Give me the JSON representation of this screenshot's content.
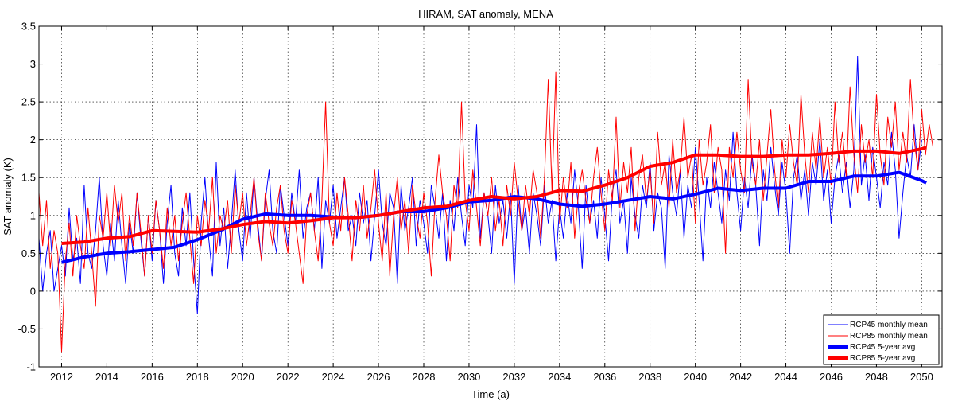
{
  "chart_data": {
    "type": "line",
    "title": "HIRAM, SAT anomaly, MENA",
    "xlabel": "Time (a)",
    "ylabel": "SAT anomaly (K)",
    "xlim": [
      2011.0,
      2050.9
    ],
    "ylim": [
      -1,
      3.5
    ],
    "grid": true,
    "legend_position": "bottom-right",
    "xticks": [
      2012,
      2014,
      2016,
      2018,
      2020,
      2022,
      2024,
      2026,
      2028,
      2030,
      2032,
      2034,
      2036,
      2038,
      2040,
      2042,
      2044,
      2046,
      2048,
      2050
    ],
    "yticks": [
      -1,
      -0.5,
      0,
      0.5,
      1,
      1.5,
      2,
      2.5,
      3,
      3.5
    ],
    "ytick_labels": [
      "-1",
      "-0.5",
      "0",
      "0.5",
      "1",
      "1.5",
      "2",
      "2.5",
      "3",
      "3.5"
    ],
    "series": [
      {
        "name": "RCP45 monthly mean",
        "color": "#0000ff",
        "width": 1,
        "x_start": 2011.0,
        "x_step": 0.16667,
        "values": [
          0.7,
          0.0,
          0.5,
          0.8,
          0.0,
          0.3,
          0.6,
          0.2,
          1.1,
          0.4,
          0.7,
          0.1,
          1.4,
          0.5,
          0.3,
          0.8,
          1.5,
          0.6,
          0.2,
          0.9,
          0.4,
          1.2,
          0.6,
          0.1,
          0.9,
          0.5,
          1.3,
          0.7,
          0.2,
          1.0,
          0.4,
          1.2,
          0.8,
          0.1,
          0.9,
          1.4,
          0.5,
          0.2,
          1.1,
          0.6,
          1.3,
          0.4,
          -0.3,
          0.9,
          1.5,
          0.7,
          0.2,
          1.7,
          0.6,
          1.1,
          0.3,
          0.9,
          1.6,
          0.8,
          0.4,
          1.3,
          0.7,
          1.5,
          0.9,
          0.4,
          1.2,
          1.6,
          0.8,
          0.5,
          1.4,
          1.0,
          0.6,
          1.3,
          0.9,
          1.6,
          0.7,
          1.1,
          1.3,
          0.8,
          1.5,
          0.3,
          1.2,
          0.9,
          1.4,
          0.7,
          1.1,
          1.5,
          0.8,
          1.0,
          0.6,
          1.3,
          0.9,
          1.2,
          0.4,
          1.0,
          1.6,
          0.9,
          0.6,
          1.3,
          1.1,
          0.1,
          1.4,
          0.8,
          1.1,
          1.5,
          0.6,
          1.2,
          0.9,
          0.5,
          1.4,
          1.1,
          0.7,
          1.3,
          0.4,
          1.2,
          0.8,
          1.5,
          1.0,
          0.6,
          1.4,
          1.1,
          2.2,
          0.7,
          1.3,
          1.0,
          0.5,
          1.4,
          0.9,
          1.2,
          0.7,
          1.3,
          0.1,
          1.4,
          0.8,
          1.1,
          0.5,
          1.3,
          1.0,
          0.6,
          1.4,
          0.9,
          1.2,
          0.4,
          1.1,
          0.7,
          1.3,
          0.9,
          1.6,
          1.1,
          0.3,
          1.4,
          0.9,
          1.2,
          0.7,
          1.5,
          1.0,
          0.4,
          1.3,
          1.6,
          0.9,
          1.2,
          0.5,
          1.5,
          1.0,
          0.7,
          1.4,
          1.1,
          1.7,
          0.8,
          1.3,
          1.1,
          0.3,
          1.8,
          1.3,
          1.0,
          1.6,
          0.7,
          1.4,
          1.1,
          1.9,
          1.2,
          0.4,
          1.5,
          1.1,
          1.7,
          1.3,
          0.9,
          1.6,
          1.2,
          2.1,
          1.3,
          0.8,
          1.5,
          1.1,
          1.8,
          1.4,
          0.6,
          1.6,
          1.2,
          1.9,
          1.4,
          1.0,
          1.7,
          1.3,
          0.5,
          1.5,
          1.8,
          1.2,
          1.6,
          1.0,
          1.7,
          1.4,
          2.0,
          1.2,
          1.6,
          0.9,
          1.5,
          1.8,
          1.3,
          1.7,
          1.1,
          1.6,
          3.1,
          1.4,
          1.8,
          1.2,
          1.9,
          1.5,
          1.1,
          1.7,
          1.4,
          2.1,
          1.6,
          0.7,
          1.3,
          1.8,
          1.5,
          2.2,
          1.6,
          2.0
        ]
      },
      {
        "name": "RCP85 monthly mean",
        "color": "#ff0000",
        "width": 1,
        "x_start": 2011.0,
        "x_step": 0.16667,
        "values": [
          1.3,
          0.6,
          1.2,
          0.3,
          0.8,
          0.5,
          -0.8,
          0.4,
          0.9,
          0.2,
          1.0,
          0.6,
          0.3,
          1.1,
          0.5,
          -0.2,
          1.0,
          0.7,
          1.3,
          0.6,
          1.4,
          0.9,
          1.3,
          0.4,
          1.0,
          0.6,
          1.3,
          0.8,
          0.2,
          1.0,
          0.5,
          1.2,
          0.8,
          0.3,
          1.1,
          0.6,
          1.0,
          0.4,
          0.9,
          1.3,
          0.7,
          0.1,
          1.0,
          0.6,
          1.2,
          0.8,
          1.5,
          0.5,
          1.0,
          0.8,
          1.2,
          0.5,
          1.4,
          0.9,
          1.3,
          0.6,
          1.0,
          1.5,
          0.8,
          0.4,
          1.3,
          0.9,
          0.6,
          1.1,
          1.4,
          0.8,
          0.5,
          1.2,
          0.9,
          0.5,
          0.1,
          1.0,
          1.3,
          0.8,
          0.4,
          1.2,
          2.5,
          0.9,
          0.6,
          1.3,
          0.8,
          1.5,
          1.0,
          0.4,
          1.2,
          0.8,
          1.4,
          0.7,
          1.1,
          1.6,
          0.9,
          0.4,
          1.3,
          0.2,
          1.0,
          1.5,
          0.8,
          1.2,
          0.5,
          1.4,
          1.0,
          0.7,
          1.3,
          0.9,
          0.2,
          1.2,
          1.8,
          1.3,
          1.0,
          0.4,
          1.4,
          1.1,
          2.5,
          1.2,
          0.8,
          1.6,
          1.1,
          0.6,
          1.3,
          1.0,
          1.5,
          0.8,
          1.2,
          0.6,
          1.4,
          1.0,
          1.7,
          1.2,
          0.8,
          1.4,
          1.0,
          1.6,
          1.3,
          0.7,
          1.5,
          2.8,
          1.3,
          2.9,
          0.9,
          1.5,
          1.1,
          1.7,
          0.7,
          1.3,
          1.6,
          1.2,
          0.9,
          1.5,
          1.9,
          1.3,
          0.8,
          1.6,
          1.2,
          2.3,
          1.1,
          1.7,
          1.3,
          1.9,
          0.8,
          1.5,
          1.8,
          1.2,
          1.6,
          0.9,
          2.1,
          1.4,
          1.7,
          1.1,
          2.0,
          1.3,
          1.6,
          2.3,
          1.5,
          1.8,
          0.9,
          2.0,
          1.4,
          1.7,
          2.2,
          1.3,
          1.9,
          1.6,
          0.5,
          1.9,
          1.5,
          2.1,
          1.6,
          1.3,
          2.8,
          1.7,
          1.4,
          2.0,
          1.2,
          1.8,
          2.4,
          1.6,
          1.1,
          2.0,
          1.5,
          2.2,
          1.7,
          1.4,
          2.6,
          1.8,
          1.3,
          2.1,
          1.6,
          2.3,
          1.5,
          1.9,
          1.4,
          2.5,
          1.7,
          2.1,
          1.5,
          2.7,
          1.8,
          1.3,
          2.2,
          1.7,
          2.0,
          1.5,
          2.6,
          1.8,
          1.4,
          2.3,
          1.9,
          2.5,
          1.6,
          2.1,
          1.7,
          2.8,
          2.0,
          1.6,
          2.4,
          1.8,
          2.2,
          1.9
        ]
      },
      {
        "name": "RCP45 5-year avg",
        "color": "#0000ff",
        "width": 4,
        "x": [
          2012.0,
          2013.0,
          2014.0,
          2015.0,
          2016.0,
          2017.0,
          2018.0,
          2019.0,
          2020.0,
          2021.0,
          2022.0,
          2023.0,
          2024.0,
          2025.0,
          2026.0,
          2027.0,
          2028.0,
          2029.0,
          2030.0,
          2031.0,
          2032.0,
          2033.0,
          2034.0,
          2035.0,
          2036.0,
          2037.0,
          2038.0,
          2039.0,
          2040.0,
          2041.0,
          2042.0,
          2043.0,
          2044.0,
          2045.0,
          2046.0,
          2047.0,
          2048.0,
          2049.0,
          2050.0,
          2050.2
        ],
        "values": [
          0.38,
          0.45,
          0.5,
          0.52,
          0.55,
          0.58,
          0.68,
          0.8,
          0.95,
          1.02,
          1.0,
          1.0,
          0.98,
          0.97,
          1.0,
          1.05,
          1.05,
          1.1,
          1.18,
          1.2,
          1.25,
          1.22,
          1.15,
          1.12,
          1.15,
          1.2,
          1.25,
          1.22,
          1.28,
          1.36,
          1.33,
          1.36,
          1.36,
          1.45,
          1.45,
          1.52,
          1.52,
          1.57,
          1.46,
          1.43
        ]
      },
      {
        "name": "RCP85 5-year avg",
        "color": "#ff0000",
        "width": 4,
        "x": [
          2012.0,
          2013.0,
          2014.0,
          2015.0,
          2016.0,
          2017.0,
          2018.0,
          2019.0,
          2020.0,
          2021.0,
          2022.0,
          2023.0,
          2024.0,
          2025.0,
          2026.0,
          2027.0,
          2028.0,
          2029.0,
          2030.0,
          2031.0,
          2032.0,
          2033.0,
          2034.0,
          2035.0,
          2036.0,
          2037.0,
          2038.0,
          2039.0,
          2040.0,
          2041.0,
          2042.0,
          2043.0,
          2044.0,
          2045.0,
          2046.0,
          2047.0,
          2048.0,
          2049.0,
          2050.0,
          2050.2
        ],
        "values": [
          0.63,
          0.65,
          0.7,
          0.72,
          0.8,
          0.79,
          0.78,
          0.82,
          0.88,
          0.92,
          0.9,
          0.93,
          0.97,
          0.97,
          1.0,
          1.05,
          1.1,
          1.12,
          1.2,
          1.25,
          1.22,
          1.25,
          1.33,
          1.32,
          1.4,
          1.5,
          1.65,
          1.7,
          1.8,
          1.8,
          1.78,
          1.78,
          1.8,
          1.8,
          1.82,
          1.85,
          1.85,
          1.82,
          1.88,
          1.9
        ]
      }
    ]
  }
}
